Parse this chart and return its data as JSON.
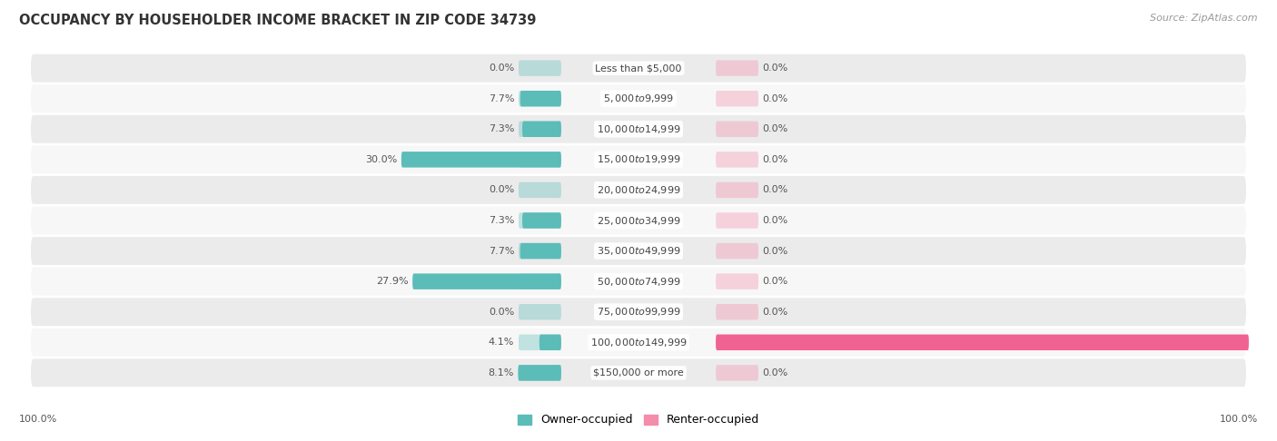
{
  "title": "OCCUPANCY BY HOUSEHOLDER INCOME BRACKET IN ZIP CODE 34739",
  "source": "Source: ZipAtlas.com",
  "categories": [
    "Less than $5,000",
    "$5,000 to $9,999",
    "$10,000 to $14,999",
    "$15,000 to $19,999",
    "$20,000 to $24,999",
    "$25,000 to $34,999",
    "$35,000 to $49,999",
    "$50,000 to $74,999",
    "$75,000 to $99,999",
    "$100,000 to $149,999",
    "$150,000 or more"
  ],
  "owner_values": [
    0.0,
    7.7,
    7.3,
    30.0,
    0.0,
    7.3,
    7.7,
    27.9,
    0.0,
    4.1,
    8.1
  ],
  "renter_values": [
    0.0,
    0.0,
    0.0,
    0.0,
    0.0,
    0.0,
    0.0,
    0.0,
    0.0,
    100.0,
    0.0
  ],
  "owner_color": "#5bbcb8",
  "renter_color": "#f48caa",
  "renter_color_dark": "#f06292",
  "row_bg_color": "#ebebeb",
  "row_bg_alt": "#f7f7f7",
  "label_color": "#555555",
  "title_color": "#333333",
  "source_color": "#999999",
  "max_scale": 100.0,
  "stub_size": 8.0,
  "figwidth": 14.06,
  "figheight": 4.86,
  "dpi": 100,
  "left_axis_label": "100.0%",
  "right_axis_label": "100.0%"
}
